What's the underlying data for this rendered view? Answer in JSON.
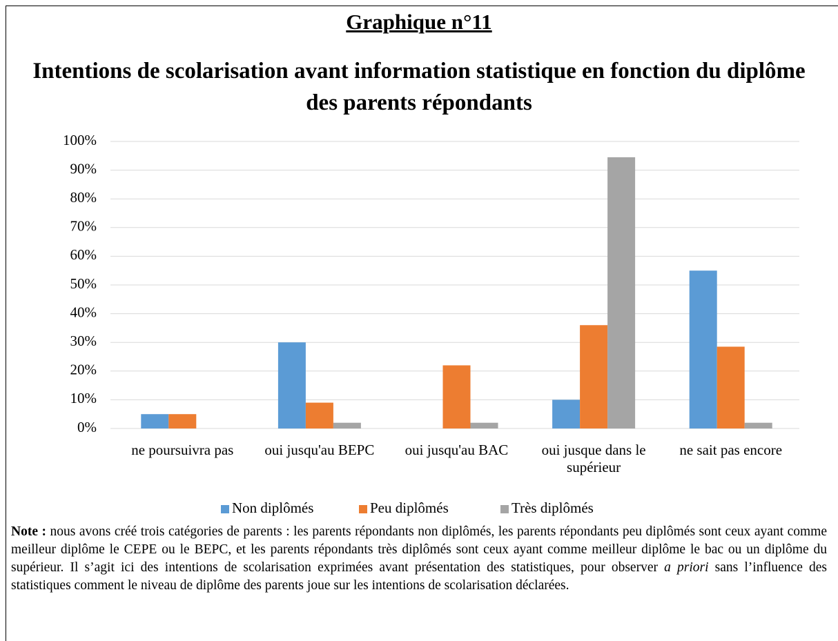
{
  "header": {
    "label": "Graphique n°11"
  },
  "chart_data": {
    "type": "bar",
    "title": "Intentions de scolarisation avant information statistique en fonction du diplôme des parents répondants",
    "categories": [
      "ne poursuivra pas",
      "oui jusqu'au BEPC",
      "oui jusqu'au BAC",
      "oui jusque dans le supérieur",
      "ne sait pas encore"
    ],
    "series": [
      {
        "name": "Non diplômés",
        "color": "#5b9bd5",
        "values": [
          5,
          30,
          0,
          10,
          55
        ]
      },
      {
        "name": "Peu diplômés",
        "color": "#ed7d31",
        "values": [
          5,
          9,
          22,
          36,
          28.5
        ]
      },
      {
        "name": "Très diplômés",
        "color": "#a5a5a5",
        "values": [
          0,
          2,
          2,
          94.5,
          2
        ]
      }
    ],
    "ylim": [
      0,
      100
    ],
    "yticks": [
      {
        "value": 0,
        "label": "0%"
      },
      {
        "value": 10,
        "label": "10%"
      },
      {
        "value": 20,
        "label": "20%"
      },
      {
        "value": 30,
        "label": "30%"
      },
      {
        "value": 40,
        "label": "40%"
      },
      {
        "value": 50,
        "label": "50%"
      },
      {
        "value": 60,
        "label": "60%"
      },
      {
        "value": 70,
        "label": "70%"
      },
      {
        "value": 80,
        "label": "80%"
      },
      {
        "value": 90,
        "label": "90%"
      },
      {
        "value": 100,
        "label": "100%"
      }
    ],
    "grid": true,
    "legend": "bottom"
  },
  "note": {
    "label": "Note :",
    "text1": " nous avons créé trois catégories de parents : les parents répondants non diplômés, les parents répondants peu diplômés sont ceux ayant comme meilleur diplôme le CEPE ou le BEPC, et les parents répondants très diplômés sont ceux ayant comme meilleur diplôme le bac ou un diplôme du supérieur. Il s’agit ici des intentions de scolarisation exprimées avant présentation des statistiques, pour observer ",
    "emphasis": "a priori",
    "text2": " sans l’influence des statistiques comment le niveau de diplôme des parents joue sur les intentions de scolarisation déclarées."
  }
}
